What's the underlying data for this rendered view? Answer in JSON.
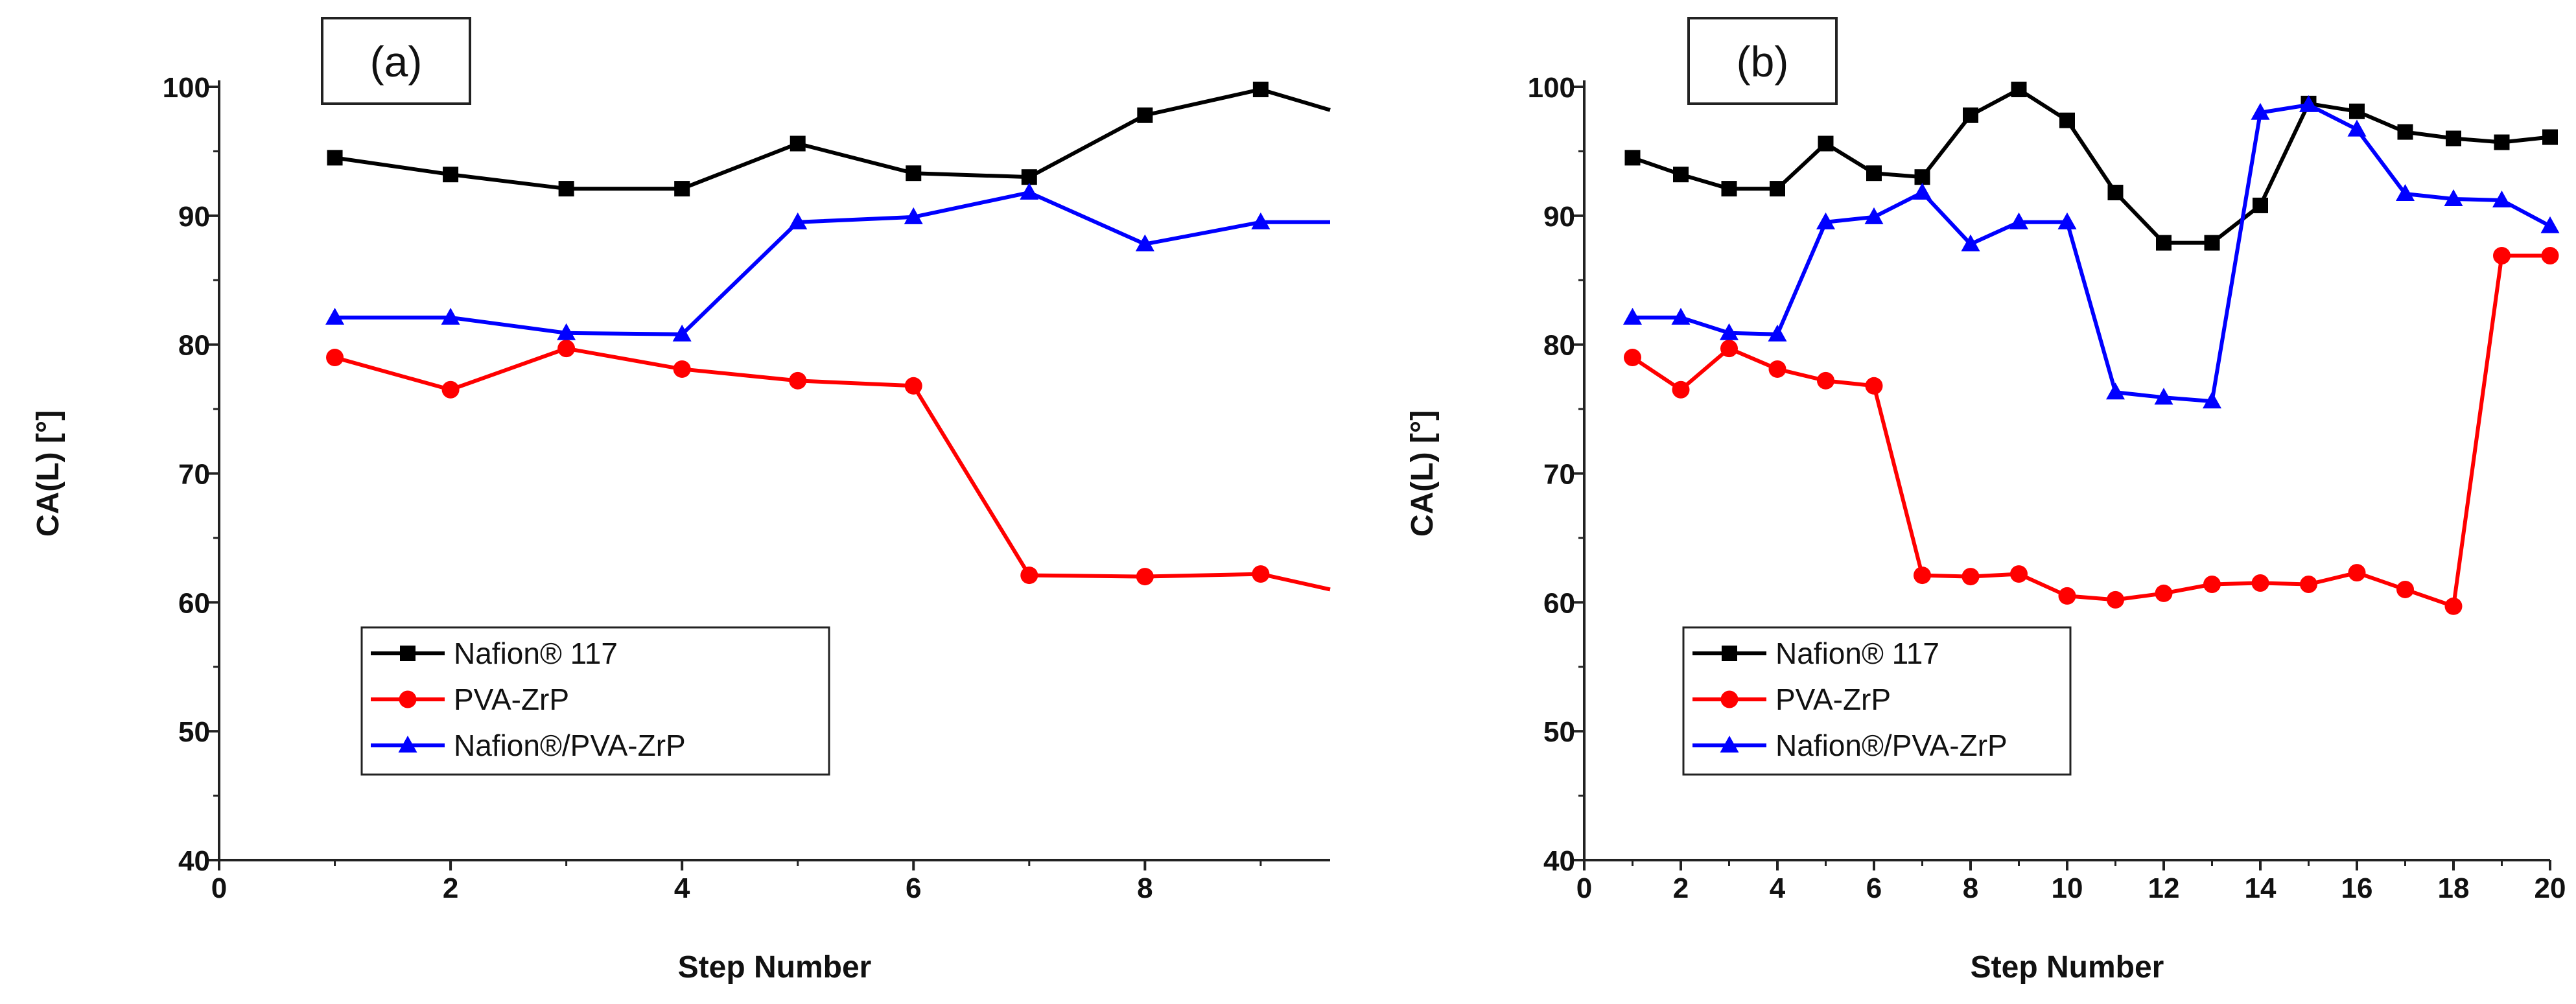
{
  "chart_data": [
    {
      "type": "line",
      "panel_label": "(a)",
      "xlabel": "Step Number",
      "ylabel": "CA(L) [°]",
      "xlim": [
        0,
        9.6
      ],
      "ylim": [
        40,
        100
      ],
      "xticks": [
        0,
        2,
        4,
        6,
        8
      ],
      "yticks": [
        40,
        50,
        60,
        70,
        80,
        90,
        100
      ],
      "xtick_labels": [
        "0",
        "2",
        "4",
        "6",
        "8"
      ],
      "ytick_labels": [
        "40",
        "50",
        "60",
        "70",
        "80",
        "90",
        "100"
      ],
      "legend_position": "lower-left",
      "series": [
        {
          "name": "Nafion® 117",
          "color": "#000000",
          "marker": "square",
          "x": [
            1,
            2,
            3,
            4,
            5,
            6,
            7,
            8,
            9,
            9.6
          ],
          "y": [
            94.5,
            93.2,
            92.1,
            92.1,
            95.6,
            93.3,
            93.0,
            97.8,
            99.8,
            98.2
          ],
          "markers": [
            1,
            1,
            1,
            1,
            1,
            1,
            1,
            1,
            1,
            0
          ]
        },
        {
          "name": "PVA-ZrP",
          "color": "#ff0000",
          "marker": "circle",
          "x": [
            1,
            2,
            3,
            4,
            5,
            6,
            7,
            8,
            9,
            9.6
          ],
          "y": [
            79.0,
            76.5,
            79.7,
            78.1,
            77.2,
            76.8,
            62.1,
            62.0,
            62.2,
            61.0
          ],
          "markers": [
            1,
            1,
            1,
            1,
            1,
            1,
            1,
            1,
            1,
            0
          ]
        },
        {
          "name": "Nafion®/PVA-ZrP",
          "color": "#0000ff",
          "marker": "triangle",
          "x": [
            1,
            2,
            3,
            4,
            5,
            6,
            7,
            8,
            9,
            9.6
          ],
          "y": [
            82.1,
            82.1,
            80.9,
            80.8,
            89.5,
            89.9,
            91.8,
            87.8,
            89.5,
            89.5
          ],
          "markers": [
            1,
            1,
            1,
            1,
            1,
            1,
            1,
            1,
            1,
            0
          ]
        }
      ]
    },
    {
      "type": "line",
      "panel_label": "(b)",
      "xlabel": "Step Number",
      "ylabel": "CA(L) [°]",
      "xlim": [
        0,
        20
      ],
      "ylim": [
        40,
        100
      ],
      "xticks": [
        0,
        2,
        4,
        6,
        8,
        10,
        12,
        14,
        16,
        18,
        20
      ],
      "yticks": [
        40,
        50,
        60,
        70,
        80,
        90,
        100
      ],
      "xtick_labels": [
        "0",
        "2",
        "4",
        "6",
        "8",
        "10",
        "12",
        "14",
        "16",
        "18",
        "20"
      ],
      "ytick_labels": [
        "40",
        "50",
        "60",
        "70",
        "80",
        "90",
        "100"
      ],
      "legend_position": "lower-left",
      "series": [
        {
          "name": "Nafion® 117",
          "color": "#000000",
          "marker": "square",
          "x": [
            1,
            2,
            3,
            4,
            5,
            6,
            7,
            8,
            9,
            10,
            11,
            12,
            13,
            14,
            15,
            16,
            17,
            18,
            19,
            20
          ],
          "y": [
            94.5,
            93.2,
            92.1,
            92.1,
            95.6,
            93.3,
            93.0,
            97.8,
            99.8,
            97.4,
            91.8,
            87.9,
            87.9,
            90.8,
            98.7,
            98.1,
            96.5,
            96.0,
            95.7,
            96.1
          ],
          "markers": [
            1,
            1,
            1,
            1,
            1,
            1,
            1,
            1,
            1,
            1,
            1,
            1,
            1,
            1,
            1,
            1,
            1,
            1,
            1,
            1
          ]
        },
        {
          "name": "PVA-ZrP",
          "color": "#ff0000",
          "marker": "circle",
          "x": [
            1,
            2,
            3,
            4,
            5,
            6,
            7,
            8,
            9,
            10,
            11,
            12,
            13,
            14,
            15,
            16,
            17,
            18,
            19,
            20
          ],
          "y": [
            79.0,
            76.5,
            79.7,
            78.1,
            77.2,
            76.8,
            62.1,
            62.0,
            62.2,
            60.5,
            60.2,
            60.7,
            61.4,
            61.5,
            61.4,
            62.3,
            61.0,
            59.7,
            86.9,
            86.9
          ],
          "markers": [
            1,
            1,
            1,
            1,
            1,
            1,
            1,
            1,
            1,
            1,
            1,
            1,
            1,
            1,
            1,
            1,
            1,
            1,
            1,
            1
          ]
        },
        {
          "name": "Nafion®/PVA-ZrP",
          "color": "#0000ff",
          "marker": "triangle",
          "x": [
            1,
            2,
            3,
            4,
            5,
            6,
            7,
            8,
            9,
            10,
            11,
            12,
            13,
            14,
            15,
            16,
            17,
            18,
            19,
            20
          ],
          "y": [
            82.1,
            82.1,
            80.9,
            80.8,
            89.5,
            89.9,
            91.8,
            87.8,
            89.5,
            89.5,
            76.3,
            75.9,
            75.6,
            98.0,
            98.6,
            96.7,
            91.7,
            91.3,
            91.2,
            89.2
          ],
          "markers": [
            1,
            1,
            1,
            1,
            1,
            1,
            1,
            1,
            1,
            1,
            1,
            1,
            1,
            1,
            1,
            1,
            1,
            1,
            1,
            1
          ]
        }
      ]
    }
  ]
}
